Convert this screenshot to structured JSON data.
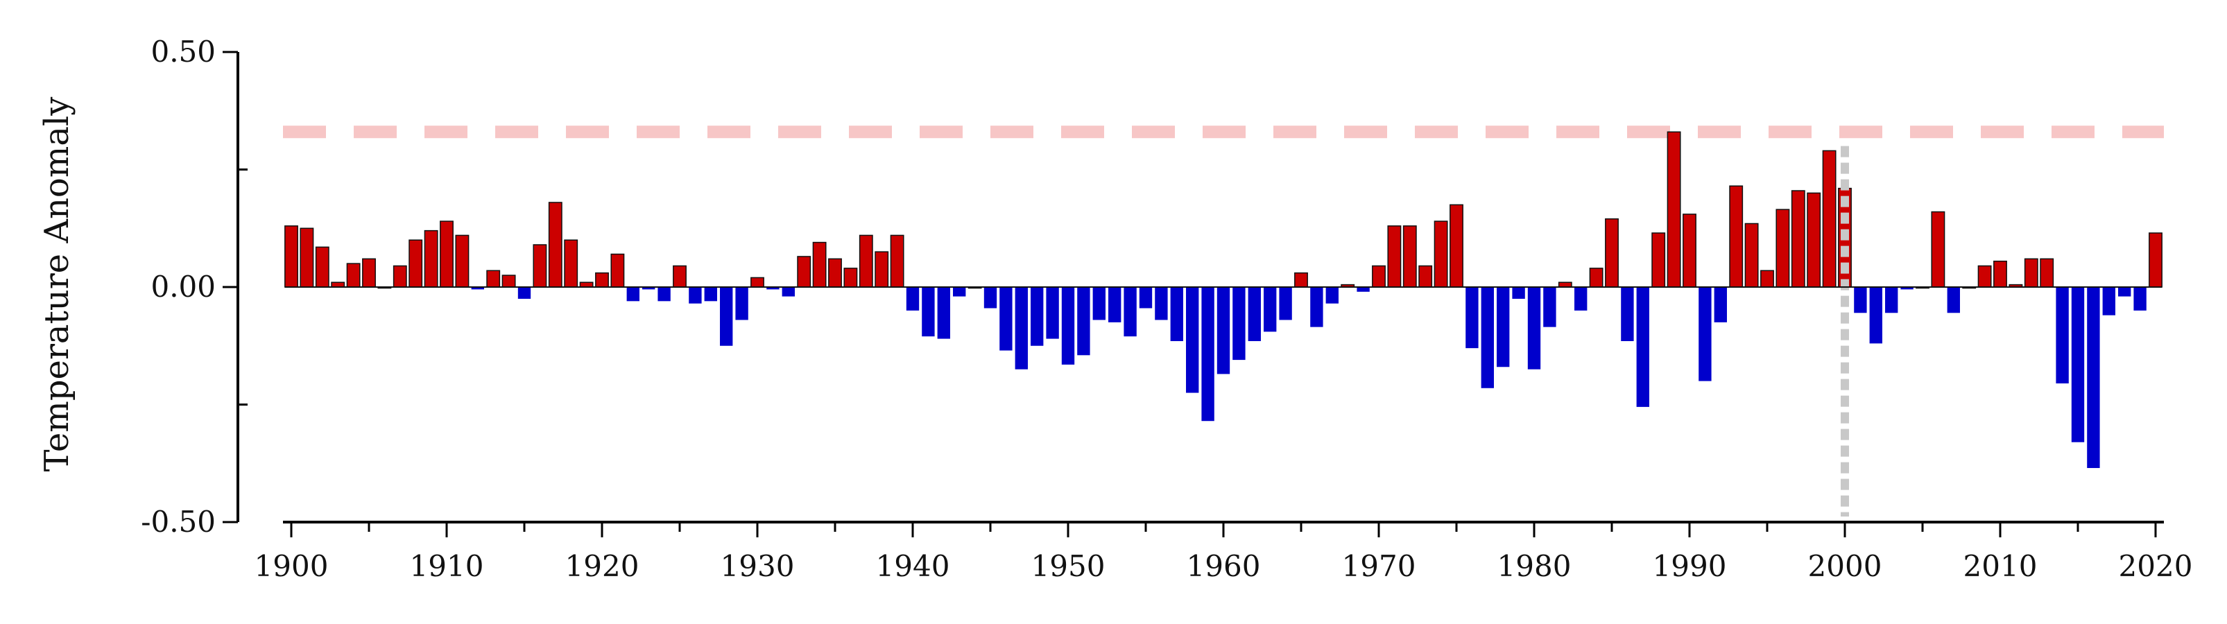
{
  "chart_data": {
    "type": "bar",
    "title": "",
    "xlabel": "",
    "ylabel": "Temperature Anomaly",
    "xlim": [
      1900,
      2020
    ],
    "ylim": [
      -0.5,
      0.5
    ],
    "x_ticks": [
      "1900",
      "1910",
      "1920",
      "1930",
      "1940",
      "1950",
      "1960",
      "1970",
      "1980",
      "1990",
      "2000",
      "2010",
      "2020"
    ],
    "y_ticks": [
      "0.50",
      "0.00",
      "-0.50"
    ],
    "grid": false,
    "legend": "none",
    "colors": {
      "positive": "#cc0000",
      "negative": "#0000cc",
      "reference_line": "#f7c6c6",
      "marker_line": "#c8c8c8"
    },
    "reference_line": {
      "y": 0.33,
      "style": "dashed"
    },
    "marker_line": {
      "x": 2000,
      "style": "dotted"
    },
    "years": [
      1900,
      1901,
      1902,
      1903,
      1904,
      1905,
      1906,
      1907,
      1908,
      1909,
      1910,
      1911,
      1912,
      1913,
      1914,
      1915,
      1916,
      1917,
      1918,
      1919,
      1920,
      1921,
      1922,
      1923,
      1924,
      1925,
      1926,
      1927,
      1928,
      1929,
      1930,
      1931,
      1932,
      1933,
      1934,
      1935,
      1936,
      1937,
      1938,
      1939,
      1940,
      1941,
      1942,
      1943,
      1944,
      1945,
      1946,
      1947,
      1948,
      1949,
      1950,
      1951,
      1952,
      1953,
      1954,
      1955,
      1956,
      1957,
      1958,
      1959,
      1960,
      1961,
      1962,
      1963,
      1964,
      1965,
      1966,
      1967,
      1968,
      1969,
      1970,
      1971,
      1972,
      1973,
      1974,
      1975,
      1976,
      1977,
      1978,
      1979,
      1980,
      1981,
      1982,
      1983,
      1984,
      1985,
      1986,
      1987,
      1988,
      1989,
      1990,
      1991,
      1992,
      1993,
      1994,
      1995,
      1996,
      1997,
      1998,
      1999,
      2000,
      2001,
      2002,
      2003,
      2004,
      2005,
      2006,
      2007,
      2008,
      2009,
      2010,
      2011,
      2012,
      2013,
      2014,
      2015,
      2016,
      2017,
      2018,
      2019,
      2020
    ],
    "values": [
      0.13,
      0.125,
      0.085,
      0.01,
      0.05,
      0.06,
      0.0,
      0.045,
      0.1,
      0.12,
      0.14,
      0.11,
      -0.005,
      0.035,
      0.025,
      -0.025,
      0.09,
      0.18,
      0.1,
      0.01,
      0.03,
      0.07,
      -0.03,
      -0.005,
      -0.03,
      0.045,
      -0.035,
      -0.03,
      -0.125,
      -0.07,
      0.02,
      -0.005,
      -0.02,
      0.065,
      0.095,
      0.06,
      0.04,
      0.11,
      0.075,
      0.11,
      -0.05,
      -0.105,
      -0.11,
      -0.02,
      0.0,
      -0.045,
      -0.135,
      -0.175,
      -0.125,
      -0.11,
      -0.165,
      -0.145,
      -0.07,
      -0.075,
      -0.105,
      -0.045,
      -0.07,
      -0.115,
      -0.225,
      -0.285,
      -0.185,
      -0.155,
      -0.115,
      -0.095,
      -0.07,
      0.03,
      -0.085,
      -0.035,
      0.005,
      -0.01,
      0.045,
      0.13,
      0.13,
      0.045,
      0.14,
      0.175,
      -0.13,
      -0.215,
      -0.17,
      -0.025,
      -0.175,
      -0.085,
      0.01,
      -0.05,
      0.04,
      0.145,
      -0.115,
      -0.255,
      0.115,
      0.33,
      0.155,
      -0.2,
      -0.075,
      0.215,
      0.135,
      0.035,
      0.165,
      0.205,
      0.2,
      0.29,
      0.21,
      -0.055,
      -0.12,
      -0.055,
      -0.005,
      0.0,
      0.16,
      -0.055,
      0.0,
      0.045,
      0.055,
      0.005,
      0.06,
      0.06,
      -0.205,
      -0.33,
      -0.385,
      -0.06,
      -0.02,
      -0.05,
      0.115
    ]
  }
}
